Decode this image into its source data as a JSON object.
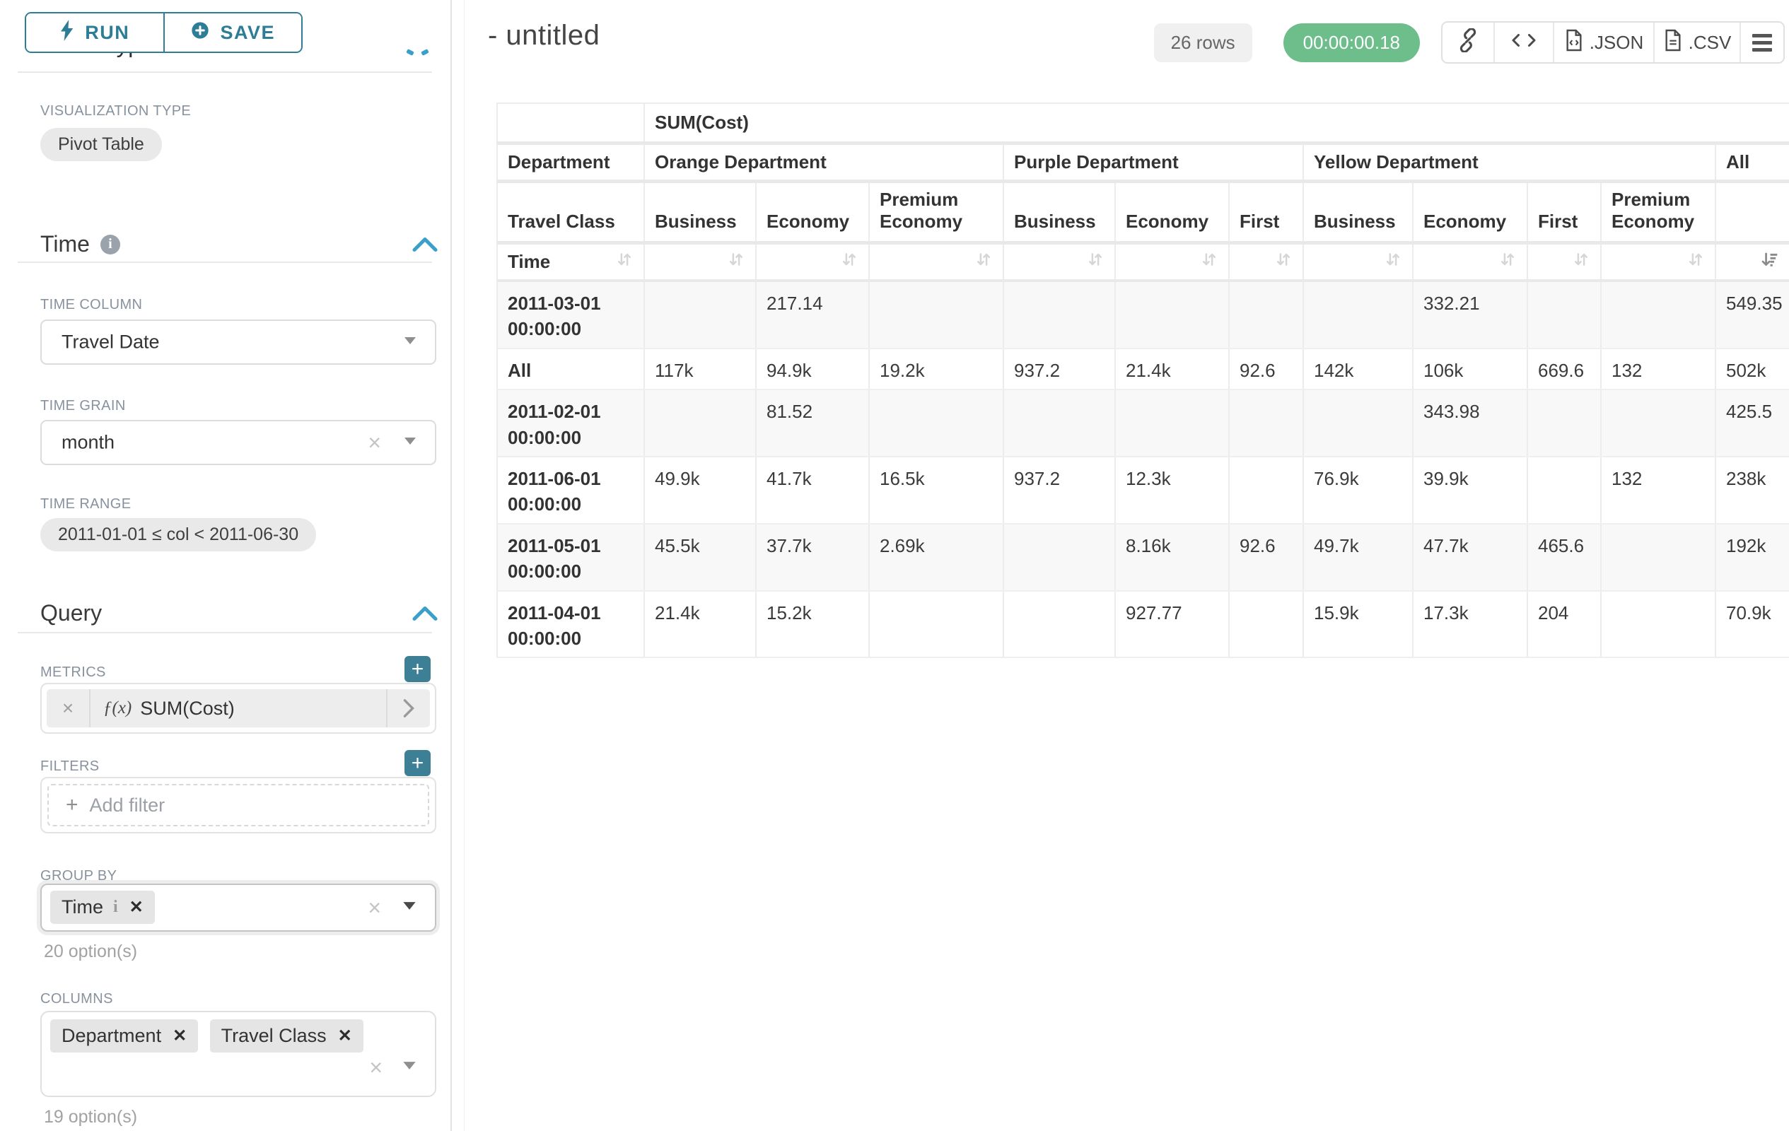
{
  "colors": {
    "accent_teal": "#2e7d96",
    "chevron_blue": "#3aa0c9",
    "timer_green": "#6dbe8b"
  },
  "sidebar": {
    "run_button": "RUN",
    "save_button": "SAVE",
    "chart_type_section_title": "Chart Type",
    "visualization_type_label": "VISUALIZATION TYPE",
    "visualization_type_value": "Pivot Table",
    "time_section": {
      "title": "Time",
      "time_column_label": "TIME COLUMN",
      "time_column_value": "Travel Date",
      "time_grain_label": "TIME GRAIN",
      "time_grain_value": "month",
      "time_range_label": "TIME RANGE",
      "time_range_value": "2011-01-01 ≤ col < 2011-06-30"
    },
    "query_section": {
      "title": "Query",
      "metrics_label": "METRICS",
      "metric_fx": "ƒ(x)",
      "metric_value": "SUM(Cost)",
      "filters_label": "FILTERS",
      "add_filter_label": "Add filter",
      "group_by_label": "GROUP BY",
      "group_by_values": [
        "Time"
      ],
      "group_by_options_hint": "20 option(s)",
      "columns_label": "COLUMNS",
      "columns_values": [
        "Department",
        "Travel Class"
      ],
      "columns_options_hint": "19 option(s)"
    }
  },
  "header": {
    "title": "- untitled",
    "row_count_badge": "26 rows",
    "timer_badge": "00:00:00.18",
    "export_json_label": ".JSON",
    "export_csv_label": ".CSV"
  },
  "pivot": {
    "metric_header": "SUM(Cost)",
    "department_label": "Department",
    "travel_class_label": "Travel Class",
    "time_label": "Time",
    "column_groups": [
      {
        "label": "Orange Department",
        "columns": [
          "Business",
          "Economy",
          "Premium Economy"
        ]
      },
      {
        "label": "Purple Department",
        "columns": [
          "Business",
          "Economy",
          "First"
        ]
      },
      {
        "label": "Yellow Department",
        "columns": [
          "Business",
          "Economy",
          "First",
          "Premium Economy"
        ]
      },
      {
        "label": "All",
        "columns": [
          ""
        ]
      }
    ],
    "sorted_column": "All",
    "sort_direction": "descending",
    "rows": [
      {
        "label": "2011-03-01 00:00:00",
        "values": [
          "",
          "217.14",
          "",
          "",
          "",
          "",
          "",
          "332.21",
          "",
          "",
          "549.35"
        ]
      },
      {
        "label": "All",
        "values": [
          "117k",
          "94.9k",
          "19.2k",
          "937.2",
          "21.4k",
          "92.6",
          "142k",
          "106k",
          "669.6",
          "132",
          "502k"
        ]
      },
      {
        "label": "2011-02-01 00:00:00",
        "values": [
          "",
          "81.52",
          "",
          "",
          "",
          "",
          "",
          "343.98",
          "",
          "",
          "425.5"
        ]
      },
      {
        "label": "2011-06-01 00:00:00",
        "values": [
          "49.9k",
          "41.7k",
          "16.5k",
          "937.2",
          "12.3k",
          "",
          "76.9k",
          "39.9k",
          "",
          "132",
          "238k"
        ]
      },
      {
        "label": "2011-05-01 00:00:00",
        "values": [
          "45.5k",
          "37.7k",
          "2.69k",
          "",
          "8.16k",
          "92.6",
          "49.7k",
          "47.7k",
          "465.6",
          "",
          "192k"
        ]
      },
      {
        "label": "2011-04-01 00:00:00",
        "values": [
          "21.4k",
          "15.2k",
          "",
          "",
          "927.77",
          "",
          "15.9k",
          "17.3k",
          "204",
          "",
          "70.9k"
        ]
      }
    ]
  }
}
